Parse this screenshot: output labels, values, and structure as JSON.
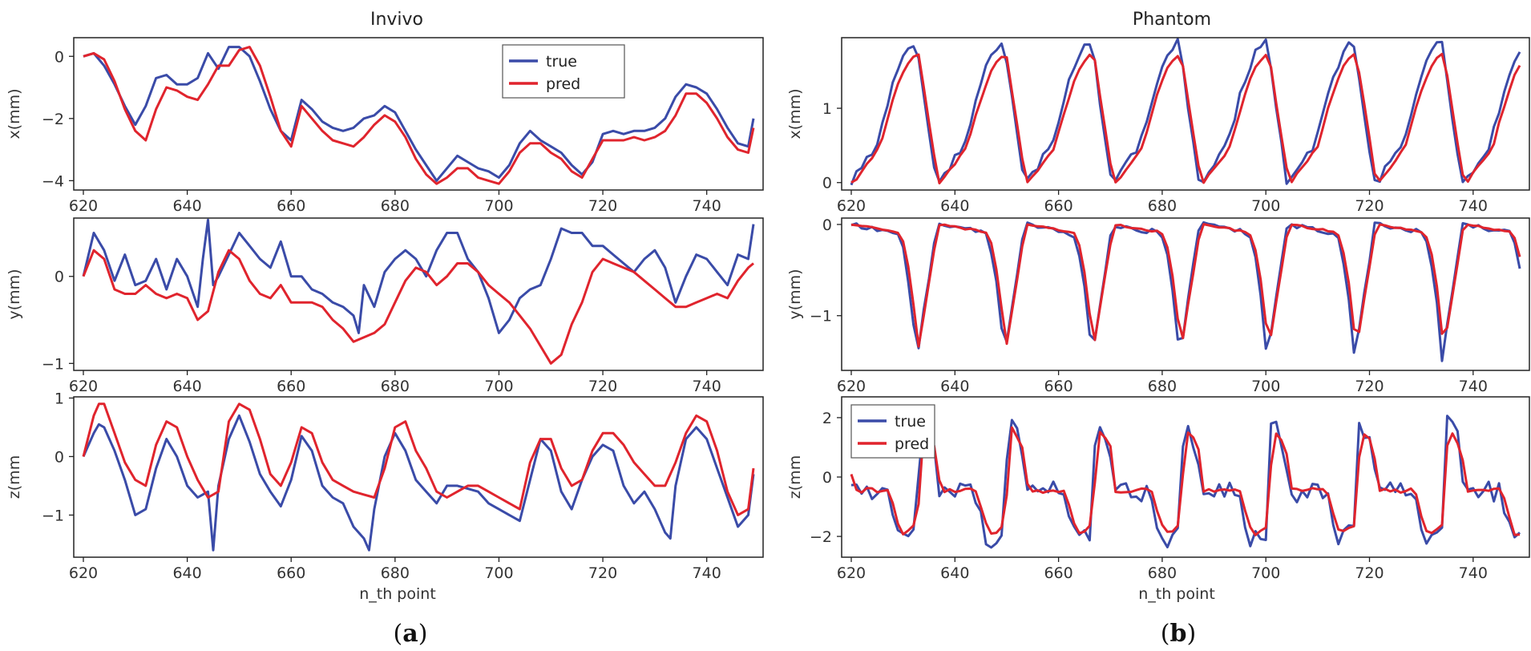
{
  "colors": {
    "true": "#3a4ba8",
    "pred": "#e0242d"
  },
  "chart_data": [
    {
      "type": "line",
      "column": "Invivo",
      "title": "Invivo",
      "ylabel": "x(mm)",
      "xlabel": "",
      "xlim": [
        620,
        749
      ],
      "ylim": [
        -4.3,
        0.6
      ],
      "yticks": [
        0,
        -2,
        -4
      ],
      "xticks": [
        620,
        640,
        660,
        680,
        700,
        720,
        740
      ],
      "legend": {
        "placement": "top-center",
        "entries": [
          "true",
          "pred"
        ]
      },
      "series": [
        {
          "name": "true",
          "x": [
            620,
            622,
            624,
            626,
            628,
            630,
            632,
            634,
            636,
            638,
            640,
            642,
            644,
            646,
            648,
            650,
            652,
            654,
            656,
            658,
            660,
            662,
            664,
            666,
            668,
            670,
            672,
            674,
            676,
            678,
            680,
            682,
            684,
            686,
            688,
            690,
            692,
            694,
            696,
            698,
            700,
            702,
            704,
            706,
            708,
            710,
            712,
            714,
            716,
            718,
            720,
            722,
            724,
            726,
            728,
            730,
            732,
            734,
            736,
            738,
            740,
            742,
            744,
            746,
            748,
            749
          ],
          "values": [
            0,
            0.1,
            -0.3,
            -0.9,
            -1.6,
            -2.2,
            -1.6,
            -0.7,
            -0.6,
            -0.9,
            -0.9,
            -0.7,
            0.1,
            -0.4,
            0.3,
            0.3,
            0,
            -0.8,
            -1.7,
            -2.4,
            -2.7,
            -1.4,
            -1.7,
            -2.1,
            -2.3,
            -2.4,
            -2.3,
            -2.0,
            -1.9,
            -1.6,
            -1.8,
            -2.4,
            -3.0,
            -3.5,
            -4.0,
            -3.6,
            -3.2,
            -3.4,
            -3.6,
            -3.7,
            -3.9,
            -3.5,
            -2.8,
            -2.4,
            -2.7,
            -2.9,
            -3.1,
            -3.5,
            -3.8,
            -3.4,
            -2.5,
            -2.4,
            -2.5,
            -2.4,
            -2.4,
            -2.3,
            -2.0,
            -1.3,
            -0.9,
            -1.0,
            -1.2,
            -1.7,
            -2.3,
            -2.8,
            -2.9,
            -2.0
          ]
        },
        {
          "name": "pred",
          "x": [
            620,
            622,
            624,
            626,
            628,
            630,
            632,
            634,
            636,
            638,
            640,
            642,
            644,
            646,
            648,
            650,
            652,
            654,
            656,
            658,
            660,
            662,
            664,
            666,
            668,
            670,
            672,
            674,
            676,
            678,
            680,
            682,
            684,
            686,
            688,
            690,
            692,
            694,
            696,
            698,
            700,
            702,
            704,
            706,
            708,
            710,
            712,
            714,
            716,
            718,
            720,
            722,
            724,
            726,
            728,
            730,
            732,
            734,
            736,
            738,
            740,
            742,
            744,
            746,
            748,
            749
          ],
          "values": [
            0,
            0.1,
            -0.1,
            -0.8,
            -1.7,
            -2.4,
            -2.7,
            -1.7,
            -1.0,
            -1.1,
            -1.3,
            -1.4,
            -0.9,
            -0.3,
            -0.3,
            0.2,
            0.3,
            -0.3,
            -1.3,
            -2.4,
            -2.9,
            -1.6,
            -2.0,
            -2.4,
            -2.7,
            -2.8,
            -2.9,
            -2.6,
            -2.2,
            -1.9,
            -2.1,
            -2.6,
            -3.3,
            -3.8,
            -4.1,
            -3.9,
            -3.6,
            -3.6,
            -3.9,
            -4.0,
            -4.1,
            -3.7,
            -3.1,
            -2.8,
            -2.8,
            -3.1,
            -3.3,
            -3.7,
            -3.9,
            -3.3,
            -2.7,
            -2.7,
            -2.7,
            -2.6,
            -2.7,
            -2.6,
            -2.4,
            -1.9,
            -1.2,
            -1.2,
            -1.5,
            -2.0,
            -2.6,
            -3.0,
            -3.1,
            -2.3
          ]
        }
      ]
    },
    {
      "type": "line",
      "column": "Invivo",
      "ylabel": "y(mm)",
      "xlabel": "",
      "xlim": [
        620,
        749
      ],
      "ylim": [
        -1.08,
        0.67
      ],
      "yticks": [
        0,
        -1
      ],
      "xticks": [
        620,
        640,
        660,
        680,
        700,
        720,
        740
      ],
      "series": [
        {
          "name": "true",
          "x": [
            620,
            622,
            624,
            626,
            628,
            630,
            632,
            634,
            636,
            638,
            640,
            642,
            643,
            644,
            645,
            646,
            648,
            650,
            652,
            654,
            656,
            658,
            660,
            662,
            664,
            666,
            668,
            670,
            672,
            673,
            674,
            676,
            678,
            680,
            682,
            684,
            686,
            688,
            690,
            692,
            694,
            696,
            698,
            700,
            702,
            704,
            706,
            708,
            710,
            712,
            714,
            716,
            718,
            720,
            722,
            724,
            726,
            728,
            730,
            732,
            734,
            736,
            738,
            740,
            742,
            744,
            746,
            748,
            749
          ],
          "values": [
            0,
            0.5,
            0.3,
            -0.05,
            0.25,
            -0.1,
            -0.05,
            0.2,
            -0.15,
            0.2,
            0.0,
            -0.35,
            0.2,
            0.65,
            -0.1,
            0.0,
            0.25,
            0.5,
            0.35,
            0.2,
            0.1,
            0.4,
            0.0,
            0.0,
            -0.15,
            -0.2,
            -0.3,
            -0.35,
            -0.45,
            -0.65,
            -0.1,
            -0.35,
            0.05,
            0.2,
            0.3,
            0.2,
            0.0,
            0.3,
            0.5,
            0.5,
            0.2,
            0.05,
            -0.25,
            -0.65,
            -0.5,
            -0.25,
            -0.15,
            -0.1,
            0.2,
            0.55,
            0.5,
            0.5,
            0.35,
            0.35,
            0.25,
            0.15,
            0.05,
            0.2,
            0.3,
            0.1,
            -0.3,
            0.0,
            0.25,
            0.2,
            0.05,
            -0.1,
            0.25,
            0.2,
            0.6
          ]
        },
        {
          "name": "pred",
          "x": [
            620,
            622,
            624,
            626,
            628,
            630,
            632,
            634,
            636,
            638,
            640,
            642,
            644,
            646,
            648,
            650,
            652,
            654,
            656,
            658,
            660,
            662,
            664,
            666,
            668,
            670,
            672,
            674,
            676,
            678,
            680,
            682,
            684,
            686,
            688,
            690,
            692,
            694,
            696,
            698,
            700,
            702,
            704,
            706,
            708,
            710,
            712,
            714,
            716,
            718,
            720,
            722,
            724,
            726,
            728,
            730,
            732,
            734,
            736,
            738,
            740,
            742,
            744,
            746,
            748,
            749
          ],
          "values": [
            0,
            0.3,
            0.2,
            -0.15,
            -0.2,
            -0.2,
            -0.1,
            -0.2,
            -0.25,
            -0.2,
            -0.25,
            -0.5,
            -0.4,
            0.05,
            0.3,
            0.2,
            -0.05,
            -0.2,
            -0.25,
            -0.1,
            -0.3,
            -0.3,
            -0.3,
            -0.35,
            -0.5,
            -0.6,
            -0.75,
            -0.7,
            -0.65,
            -0.55,
            -0.3,
            -0.05,
            0.1,
            0.05,
            -0.1,
            0.0,
            0.15,
            0.15,
            0.05,
            -0.1,
            -0.2,
            -0.3,
            -0.45,
            -0.6,
            -0.8,
            -1.0,
            -0.9,
            -0.55,
            -0.3,
            0.05,
            0.2,
            0.15,
            0.1,
            0.05,
            -0.05,
            -0.15,
            -0.25,
            -0.35,
            -0.35,
            -0.3,
            -0.25,
            -0.2,
            -0.25,
            -0.05,
            0.1,
            0.15
          ]
        }
      ]
    },
    {
      "type": "line",
      "column": "Invivo",
      "ylabel": "z(mm",
      "xlabel": "n_th point",
      "xlim": [
        620,
        749
      ],
      "ylim": [
        -1.72,
        1.02
      ],
      "yticks": [
        1,
        0,
        -1
      ],
      "xticks": [
        620,
        640,
        660,
        680,
        700,
        720,
        740
      ],
      "series": [
        {
          "name": "true",
          "x": [
            620,
            622,
            623,
            624,
            626,
            628,
            630,
            632,
            634,
            636,
            638,
            640,
            642,
            644,
            645,
            646,
            648,
            650,
            652,
            654,
            656,
            658,
            660,
            662,
            664,
            666,
            668,
            670,
            672,
            674,
            675,
            676,
            678,
            680,
            682,
            684,
            686,
            688,
            690,
            692,
            694,
            696,
            698,
            700,
            702,
            704,
            706,
            708,
            710,
            712,
            714,
            716,
            718,
            720,
            722,
            724,
            726,
            728,
            730,
            732,
            733,
            734,
            736,
            738,
            740,
            742,
            744,
            746,
            748,
            749
          ],
          "values": [
            0,
            0.4,
            0.55,
            0.5,
            0.1,
            -0.4,
            -1.0,
            -0.9,
            -0.2,
            0.3,
            0.0,
            -0.5,
            -0.7,
            -0.6,
            -1.6,
            -0.5,
            0.3,
            0.7,
            0.25,
            -0.3,
            -0.6,
            -0.85,
            -0.4,
            0.35,
            0.1,
            -0.5,
            -0.7,
            -0.8,
            -1.2,
            -1.4,
            -1.6,
            -0.9,
            0.0,
            0.4,
            0.1,
            -0.4,
            -0.6,
            -0.8,
            -0.5,
            -0.5,
            -0.55,
            -0.6,
            -0.8,
            -0.9,
            -1.0,
            -1.1,
            -0.4,
            0.3,
            0.1,
            -0.6,
            -0.9,
            -0.4,
            0.0,
            0.2,
            0.1,
            -0.5,
            -0.8,
            -0.6,
            -0.9,
            -1.3,
            -1.4,
            -0.5,
            0.3,
            0.5,
            0.3,
            -0.2,
            -0.7,
            -1.2,
            -1.0,
            -0.3
          ]
        },
        {
          "name": "pred",
          "x": [
            620,
            622,
            623,
            624,
            626,
            628,
            630,
            632,
            634,
            636,
            638,
            640,
            642,
            644,
            646,
            648,
            650,
            652,
            654,
            656,
            658,
            660,
            662,
            664,
            666,
            668,
            670,
            672,
            674,
            676,
            678,
            680,
            682,
            684,
            686,
            688,
            690,
            692,
            694,
            696,
            698,
            700,
            702,
            704,
            706,
            708,
            710,
            712,
            714,
            716,
            718,
            720,
            722,
            724,
            726,
            728,
            730,
            732,
            734,
            736,
            738,
            740,
            742,
            744,
            746,
            748,
            749
          ],
          "values": [
            0,
            0.7,
            0.9,
            0.9,
            0.4,
            -0.1,
            -0.4,
            -0.5,
            0.2,
            0.6,
            0.5,
            0.0,
            -0.4,
            -0.7,
            -0.6,
            0.6,
            0.9,
            0.8,
            0.3,
            -0.3,
            -0.5,
            -0.1,
            0.5,
            0.4,
            -0.1,
            -0.4,
            -0.5,
            -0.6,
            -0.65,
            -0.7,
            -0.2,
            0.5,
            0.6,
            0.1,
            -0.2,
            -0.6,
            -0.7,
            -0.6,
            -0.5,
            -0.5,
            -0.6,
            -0.7,
            -0.8,
            -0.9,
            -0.1,
            0.3,
            0.3,
            -0.2,
            -0.5,
            -0.4,
            0.1,
            0.4,
            0.4,
            0.2,
            -0.1,
            -0.3,
            -0.5,
            -0.5,
            -0.1,
            0.4,
            0.7,
            0.6,
            0.1,
            -0.6,
            -1.0,
            -0.9,
            -0.2
          ]
        }
      ]
    },
    {
      "type": "line",
      "column": "Phantom",
      "title": "Phantom",
      "ylabel": "x(mm)",
      "xlabel": "",
      "xlim": [
        620,
        749
      ],
      "ylim": [
        -0.1,
        1.95
      ],
      "yticks": [
        1,
        0
      ],
      "xticks": [
        620,
        640,
        660,
        680,
        700,
        720,
        740
      ],
      "series": [
        {
          "name": "true",
          "shape": "pulse",
          "amp": 1.88,
          "base": 0,
          "period": 16.9,
          "start": 620,
          "peakOffset": 12.6,
          "jitter": 0.06
        },
        {
          "name": "pred",
          "shape": "pulse",
          "amp": 1.72,
          "base": 0,
          "period": 16.9,
          "start": 620.4,
          "peakOffset": 12.6,
          "jitter": 0.02
        }
      ]
    },
    {
      "type": "line",
      "column": "Phantom",
      "ylabel": "y(mm)",
      "xlabel": "",
      "xlim": [
        620,
        749
      ],
      "ylim": [
        -1.6,
        0.07
      ],
      "yticks": [
        0,
        -1
      ],
      "xticks": [
        620,
        640,
        660,
        680,
        700,
        720,
        740
      ],
      "series": [
        {
          "name": "true",
          "shape": "dip",
          "amp": -1.48,
          "base": 0,
          "period": 16.9,
          "start": 620,
          "peakOffset": 12.6,
          "jitter": 0.03
        },
        {
          "name": "pred",
          "shape": "dip",
          "amp": -1.38,
          "base": 0,
          "period": 16.9,
          "start": 620.3,
          "peakOffset": 12.6,
          "jitter": 0.01
        }
      ]
    },
    {
      "type": "line",
      "column": "Phantom",
      "ylabel": "z(mm",
      "xlabel": "n_th point",
      "xlim": [
        620,
        749
      ],
      "ylim": [
        -2.7,
        2.7
      ],
      "yticks": [
        2,
        0,
        -2
      ],
      "xticks": [
        620,
        640,
        660,
        680,
        700,
        720,
        740
      ],
      "legend": {
        "placement": "top-left",
        "entries": [
          "true",
          "pred"
        ]
      },
      "series": [
        {
          "name": "true",
          "shape": "zwave",
          "amp": 2.3,
          "base": -0.5,
          "period": 16.9,
          "start": 620,
          "jitter": 0.35
        },
        {
          "name": "pred",
          "shape": "zwave",
          "amp": 2.05,
          "base": -0.45,
          "period": 16.9,
          "start": 620.3,
          "jitter": 0.08
        }
      ]
    }
  ],
  "captions": {
    "a": "a",
    "b": "b"
  }
}
